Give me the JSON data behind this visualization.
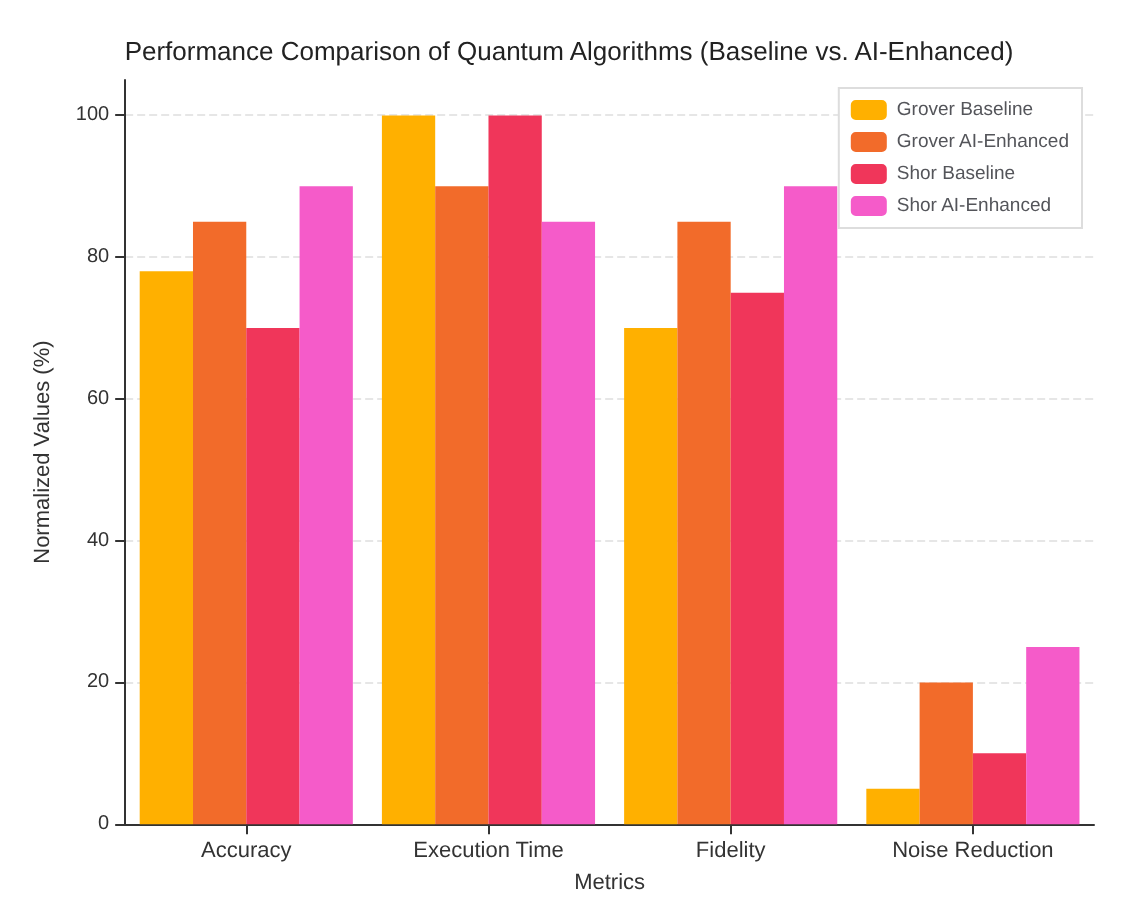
{
  "chart_data": {
    "type": "bar",
    "title": "Performance Comparison of Quantum Algorithms (Baseline vs. AI-Enhanced)",
    "xlabel": "Metrics",
    "ylabel": "Normalized Values (%)",
    "categories": [
      "Accuracy",
      "Execution Time",
      "Fidelity",
      "Noise Reduction"
    ],
    "series": [
      {
        "name": "Grover Baseline",
        "color": "#ffb000",
        "values": [
          78,
          100,
          70,
          5
        ]
      },
      {
        "name": "Grover AI-Enhanced",
        "color": "#f26b2a",
        "values": [
          85,
          90,
          85,
          20
        ]
      },
      {
        "name": "Shor Baseline",
        "color": "#f0365a",
        "values": [
          70,
          100,
          75,
          10
        ]
      },
      {
        "name": "Shor AI-Enhanced",
        "color": "#f55bc9",
        "values": [
          90,
          85,
          90,
          25
        ]
      }
    ],
    "ylim": [
      0,
      105
    ],
    "yticks": [
      0,
      20,
      40,
      60,
      80,
      100
    ],
    "grid": "y",
    "legend": "top right"
  }
}
